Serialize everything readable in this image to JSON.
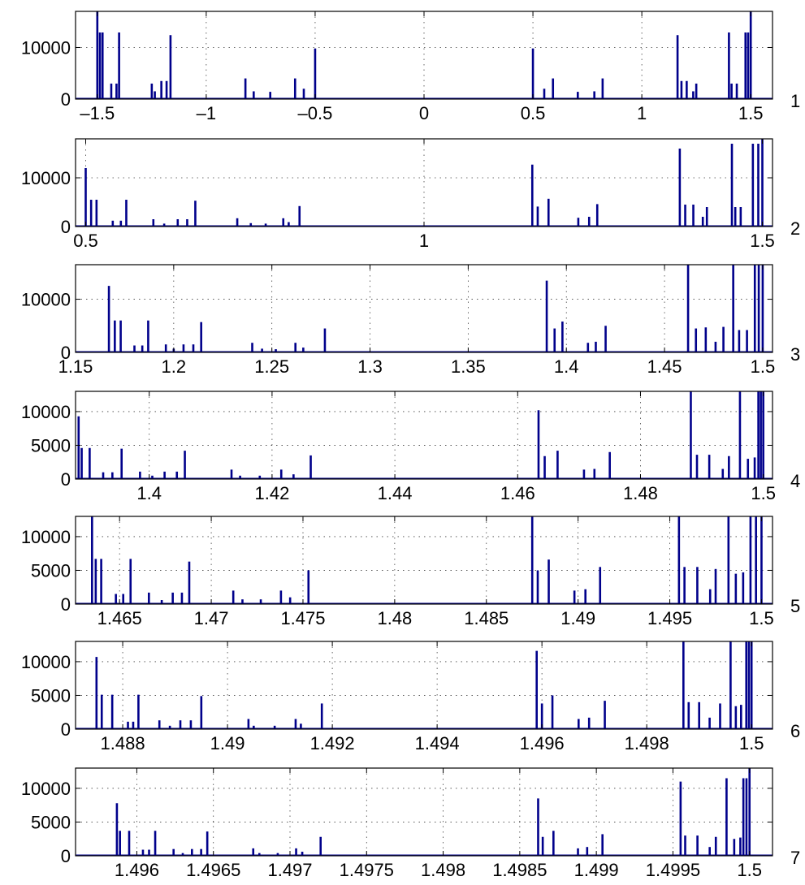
{
  "chart_data": [
    {
      "type": "bar",
      "panel_label": "1",
      "xlim": [
        -1.6,
        1.6
      ],
      "ylim": [
        0,
        17000
      ],
      "grid": true,
      "xticks": [
        -1.5,
        -1,
        -0.5,
        0,
        0.5,
        1,
        1.5
      ],
      "xtick_labels": [
        "–1.5",
        "–1",
        "–0.5",
        "0",
        "0.5",
        "1",
        "1.5"
      ],
      "yticks": [
        0,
        10000
      ],
      "ytick_labels": [
        "0",
        "10000"
      ],
      "x": [
        -1.5,
        -1.488,
        -1.476,
        -1.436,
        -1.412,
        -1.4,
        -1.25,
        -1.236,
        -1.206,
        -1.182,
        -1.164,
        -0.82,
        -0.782,
        -0.706,
        -0.592,
        -0.552,
        -0.5,
        0.5,
        0.552,
        0.592,
        0.706,
        0.782,
        0.82,
        1.164,
        1.182,
        1.206,
        1.236,
        1.25,
        1.4,
        1.412,
        1.436,
        1.476,
        1.488,
        1.5
      ],
      "values": [
        17000,
        12900,
        12900,
        3000,
        3000,
        12900,
        3000,
        1500,
        3500,
        3500,
        12400,
        4000,
        1500,
        1400,
        4000,
        2000,
        9800,
        9800,
        2000,
        4000,
        1400,
        1500,
        4000,
        12400,
        3500,
        3500,
        1500,
        3000,
        12900,
        3000,
        3000,
        12900,
        12900,
        17000
      ]
    },
    {
      "type": "bar",
      "panel_label": "2",
      "xlim": [
        0.485,
        1.515
      ],
      "ylim": [
        0,
        18000
      ],
      "grid": true,
      "xticks": [
        0.5,
        1,
        1.5
      ],
      "xtick_labels": [
        "0.5",
        "1",
        "1.5"
      ],
      "yticks": [
        0,
        10000
      ],
      "yticks_labels_note": "",
      "ytick_labels": [
        "0",
        "10000"
      ],
      "x": [
        0.5,
        0.508,
        0.516,
        0.54,
        0.552,
        0.56,
        0.6,
        0.616,
        0.636,
        0.65,
        0.662,
        0.724,
        0.744,
        0.766,
        0.792,
        0.8,
        0.816,
        1.16,
        1.168,
        1.184,
        1.228,
        1.244,
        1.256,
        1.378,
        1.386,
        1.398,
        1.412,
        1.418,
        1.455,
        1.46,
        1.468,
        1.486,
        1.494,
        1.5
      ],
      "values": [
        12000,
        5500,
        5500,
        1200,
        1200,
        5500,
        1500,
        600,
        1500,
        1500,
        5300,
        1700,
        700,
        600,
        1700,
        900,
        4200,
        12700,
        4100,
        5700,
        1800,
        2000,
        4600,
        16000,
        4500,
        4500,
        2000,
        4000,
        17000,
        4000,
        4000,
        17000,
        17000,
        18000
      ]
    },
    {
      "type": "bar",
      "panel_label": "3",
      "xlim": [
        1.15,
        1.505
      ],
      "ylim": [
        0,
        16500
      ],
      "grid": true,
      "xticks": [
        1.15,
        1.2,
        1.25,
        1.3,
        1.35,
        1.4,
        1.45,
        1.5
      ],
      "xtick_labels": [
        "1.15",
        "1.2",
        "1.25",
        "1.3",
        "1.35",
        "1.4",
        "1.45",
        "1.5"
      ],
      "yticks": [
        0,
        10000
      ],
      "ytick_labels": [
        "0",
        "10000"
      ],
      "x": [
        1.167,
        1.17,
        1.173,
        1.18,
        1.184,
        1.187,
        1.196,
        1.2,
        1.205,
        1.21,
        1.214,
        1.24,
        1.245,
        1.252,
        1.262,
        1.266,
        1.277,
        1.39,
        1.394,
        1.398,
        1.411,
        1.415,
        1.42,
        1.462,
        1.466,
        1.471,
        1.476,
        1.48,
        1.485,
        1.488,
        1.492,
        1.496,
        1.498,
        1.5
      ],
      "values": [
        12500,
        6000,
        6000,
        1300,
        1300,
        6000,
        1500,
        700,
        1500,
        1500,
        5700,
        1800,
        700,
        600,
        1800,
        900,
        4500,
        13500,
        4500,
        5800,
        1800,
        2000,
        5000,
        16500,
        4500,
        4700,
        2000,
        4800,
        16500,
        4200,
        4200,
        16500,
        16500,
        16500
      ]
    },
    {
      "type": "bar",
      "panel_label": "4",
      "xlim": [
        1.388,
        1.5015
      ],
      "ylim": [
        0,
        13000
      ],
      "grid": true,
      "xticks": [
        1.4,
        1.42,
        1.44,
        1.46,
        1.48,
        1.5
      ],
      "xtick_labels": [
        "1.4",
        "1.42",
        "1.44",
        "1.46",
        "1.48",
        "1.5"
      ],
      "yticks": [
        0,
        5000,
        10000
      ],
      "ytick_labels": [
        "0",
        "5000",
        "10000"
      ],
      "x": [
        1.3885,
        1.389,
        1.3903,
        1.3925,
        1.394,
        1.3955,
        1.3985,
        1.4005,
        1.4025,
        1.4045,
        1.4058,
        1.4134,
        1.4148,
        1.418,
        1.4215,
        1.4235,
        1.4263,
        1.4634,
        1.4644,
        1.4665,
        1.4708,
        1.4725,
        1.475,
        1.4882,
        1.4892,
        1.4912,
        1.4934,
        1.4944,
        1.4962,
        1.4975,
        1.4986,
        1.4992,
        1.4996,
        1.5
      ],
      "values": [
        9300,
        4600,
        4600,
        1000,
        1000,
        4500,
        1100,
        500,
        1100,
        1100,
        4200,
        1400,
        500,
        500,
        1400,
        700,
        3500,
        10200,
        3400,
        4200,
        1400,
        1500,
        4000,
        13000,
        3600,
        3600,
        1500,
        3400,
        13000,
        3000,
        3200,
        13000,
        13000,
        13000
      ]
    },
    {
      "type": "bar",
      "panel_label": "5",
      "xlim": [
        1.4626,
        1.5006
      ],
      "ylim": [
        0,
        13000
      ],
      "grid": true,
      "xticks": [
        1.465,
        1.47,
        1.475,
        1.48,
        1.485,
        1.49,
        1.495,
        1.5
      ],
      "xtick_labels": [
        "1.465",
        "1.47",
        "1.475",
        "1.48",
        "1.485",
        "1.49",
        "1.495",
        "1.5"
      ],
      "yticks": [
        0,
        5000,
        10000
      ],
      "yticks_labels_note": "",
      "ytick_labels": [
        "0",
        "5000",
        "10000"
      ],
      "x": [
        1.4635,
        1.4637,
        1.464,
        1.4648,
        1.4652,
        1.4656,
        1.4666,
        1.4673,
        1.4679,
        1.4684,
        1.4688,
        1.4712,
        1.4717,
        1.4727,
        1.4738,
        1.4743,
        1.4753,
        1.4875,
        1.4878,
        1.4884,
        1.4898,
        1.4904,
        1.4912,
        1.4955,
        1.4958,
        1.4965,
        1.4972,
        1.4975,
        1.4982,
        1.4986,
        1.499,
        1.4994,
        1.4997,
        1.5
      ],
      "values": [
        13000,
        6700,
        6700,
        1500,
        1500,
        6700,
        1700,
        600,
        1700,
        1700,
        6300,
        2000,
        700,
        700,
        2000,
        1000,
        5000,
        13000,
        5000,
        6600,
        2000,
        2200,
        5500,
        13000,
        5500,
        5500,
        2200,
        5200,
        13000,
        4500,
        4700,
        13000,
        13000,
        13000
      ]
    },
    {
      "type": "bar",
      "panel_label": "6",
      "xlim": [
        1.4871,
        1.5004
      ],
      "ylim": [
        0,
        13000
      ],
      "grid": true,
      "xticks": [
        1.488,
        1.49,
        1.492,
        1.494,
        1.496,
        1.498,
        1.5
      ],
      "xtick_labels": [
        "1.488",
        "1.49",
        "1.492",
        "1.494",
        "1.496",
        "1.498",
        "1.5"
      ],
      "yticks": [
        0,
        5000,
        10000
      ],
      "ytick_labels": [
        "0",
        "5000",
        "10000"
      ],
      "x": [
        1.4875,
        1.4876,
        1.4878,
        1.4881,
        1.4882,
        1.4883,
        1.4887,
        1.4889,
        1.4891,
        1.4893,
        1.4895,
        1.4904,
        1.4905,
        1.4909,
        1.4913,
        1.4914,
        1.4918,
        1.4959,
        1.496,
        1.4962,
        1.4967,
        1.4969,
        1.4972,
        1.4987,
        1.4988,
        1.499,
        1.4992,
        1.4994,
        1.4996,
        1.4997,
        1.4998,
        1.4999,
        1.49995,
        1.5
      ],
      "values": [
        10700,
        5100,
        5100,
        1100,
        1100,
        5100,
        1300,
        500,
        1300,
        1300,
        4900,
        1500,
        500,
        500,
        1500,
        800,
        3800,
        11600,
        3800,
        5000,
        1500,
        1700,
        4200,
        13000,
        4000,
        4000,
        1700,
        3800,
        13000,
        3400,
        3600,
        13000,
        13000,
        13000
      ]
    },
    {
      "type": "bar",
      "panel_label": "7",
      "xlim": [
        1.4956,
        1.50015
      ],
      "ylim": [
        0,
        13000
      ],
      "grid": true,
      "xticks": [
        1.496,
        1.4965,
        1.497,
        1.4975,
        1.498,
        1.4985,
        1.499,
        1.4995,
        1.5
      ],
      "xtick_labels": [
        "1.496",
        "1.4965",
        "1.497",
        "1.4975",
        "1.498",
        "1.4985",
        "1.499",
        "1.4995",
        "1.5"
      ],
      "yticks": [
        0,
        5000,
        10000
      ],
      "ytick_labels": [
        "0",
        "5000",
        "10000"
      ],
      "x": [
        1.49587,
        1.49589,
        1.49595,
        1.49604,
        1.49608,
        1.49612,
        1.49624,
        1.4963,
        1.49636,
        1.49642,
        1.49646,
        1.49676,
        1.4968,
        1.49692,
        1.49704,
        1.49708,
        1.4972,
        1.49862,
        1.49865,
        1.49872,
        1.49888,
        1.49894,
        1.49904,
        1.49955,
        1.49958,
        1.49966,
        1.49974,
        1.49978,
        1.49985,
        1.4999,
        1.49994,
        1.49996,
        1.49998,
        1.5
      ],
      "values": [
        7800,
        3700,
        3700,
        900,
        900,
        3700,
        1000,
        400,
        1000,
        1000,
        3600,
        1100,
        400,
        400,
        1100,
        600,
        2800,
        8500,
        2800,
        3700,
        1100,
        1300,
        3200,
        11000,
        3000,
        3000,
        1300,
        2800,
        11500,
        2500,
        2700,
        11500,
        11500,
        13000
      ]
    }
  ]
}
